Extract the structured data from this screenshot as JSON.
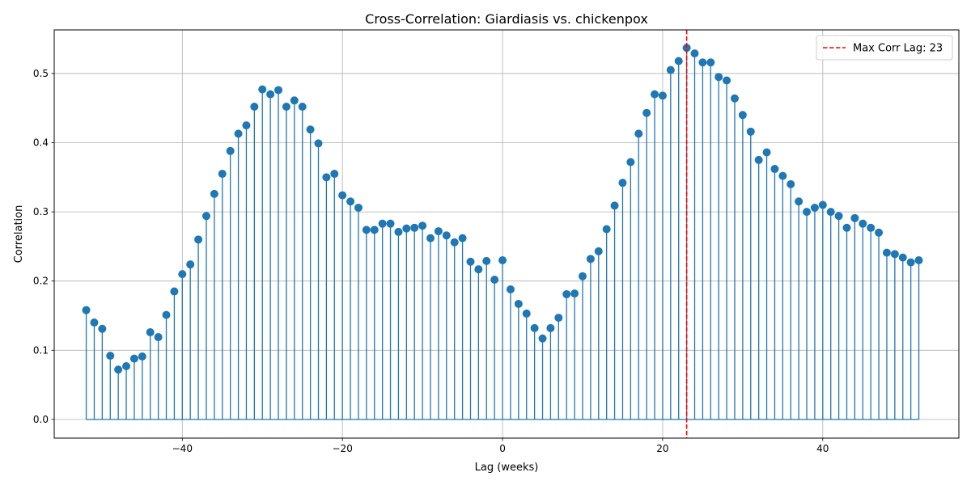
{
  "chart_data": {
    "type": "stem",
    "title": "Cross-Correlation: Giardiasis vs. chickenpox",
    "xlabel": "Lag (weeks)",
    "ylabel": "Correlation",
    "xlim": [
      -56,
      57
    ],
    "ylim": [
      -0.027,
      0.563
    ],
    "xticks": [
      -40,
      -20,
      0,
      20,
      40
    ],
    "yticks": [
      0.0,
      0.1,
      0.2,
      0.3,
      0.4,
      0.5
    ],
    "xtick_labels": [
      "−40",
      "−20",
      "0",
      "20",
      "40"
    ],
    "ytick_labels": [
      "0.0",
      "0.1",
      "0.2",
      "0.3",
      "0.4",
      "0.5"
    ],
    "grid": true,
    "legend_position": "top-right",
    "stem_color": "#1f77b4",
    "max_lag": 23,
    "max_line_color": "#ff0000",
    "legend_label": "Max Corr Lag: 23",
    "lags": [
      -52,
      -51,
      -50,
      -49,
      -48,
      -47,
      -46,
      -45,
      -44,
      -43,
      -42,
      -41,
      -40,
      -39,
      -38,
      -37,
      -36,
      -35,
      -34,
      -33,
      -32,
      -31,
      -30,
      -29,
      -28,
      -27,
      -26,
      -25,
      -24,
      -23,
      -22,
      -21,
      -20,
      -19,
      -18,
      -17,
      -16,
      -15,
      -14,
      -13,
      -12,
      -11,
      -10,
      -9,
      -8,
      -7,
      -6,
      -5,
      -4,
      -3,
      -2,
      -1,
      0,
      1,
      2,
      3,
      4,
      5,
      6,
      7,
      8,
      9,
      10,
      11,
      12,
      13,
      14,
      15,
      16,
      17,
      18,
      19,
      20,
      21,
      22,
      23,
      24,
      25,
      26,
      27,
      28,
      29,
      30,
      31,
      32,
      33,
      34,
      35,
      36,
      37,
      38,
      39,
      40,
      41,
      42,
      43,
      44,
      45,
      46,
      47,
      48,
      49,
      50,
      51,
      52
    ],
    "values": [
      0.158,
      0.14,
      0.131,
      0.092,
      0.072,
      0.077,
      0.088,
      0.091,
      0.126,
      0.119,
      0.151,
      0.185,
      0.21,
      0.224,
      0.26,
      0.294,
      0.326,
      0.355,
      0.388,
      0.413,
      0.425,
      0.452,
      0.477,
      0.47,
      0.476,
      0.452,
      0.461,
      0.452,
      0.419,
      0.399,
      0.35,
      0.355,
      0.324,
      0.315,
      0.306,
      0.274,
      0.274,
      0.283,
      0.283,
      0.271,
      0.276,
      0.277,
      0.28,
      0.262,
      0.272,
      0.266,
      0.256,
      0.262,
      0.228,
      0.217,
      0.229,
      0.202,
      0.23,
      0.188,
      0.167,
      0.153,
      0.132,
      0.117,
      0.132,
      0.147,
      0.181,
      0.182,
      0.207,
      0.232,
      0.243,
      0.275,
      0.309,
      0.342,
      0.372,
      0.413,
      0.443,
      0.47,
      0.468,
      0.505,
      0.518,
      0.537,
      0.529,
      0.516,
      0.516,
      0.495,
      0.49,
      0.464,
      0.44,
      0.416,
      0.375,
      0.386,
      0.362,
      0.352,
      0.34,
      0.315,
      0.3,
      0.306,
      0.31,
      0.3,
      0.294,
      0.277,
      0.291,
      0.283,
      0.277,
      0.27,
      0.241,
      0.239,
      0.234,
      0.227,
      0.23
    ]
  }
}
